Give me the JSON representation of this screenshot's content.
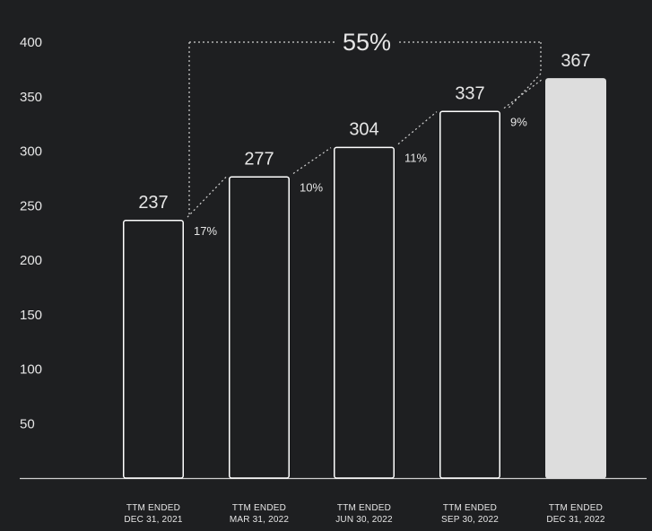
{
  "chart_data": {
    "type": "bar",
    "title": "",
    "xlabel": "",
    "ylabel": "",
    "ylim": [
      0,
      400
    ],
    "y_ticks": [
      50,
      100,
      150,
      200,
      250,
      300,
      350,
      400
    ],
    "grid": false,
    "categories": [
      [
        "TTM ENDED",
        "DEC 31, 2021"
      ],
      [
        "TTM ENDED",
        "MAR 31, 2022"
      ],
      [
        "TTM ENDED",
        "JUN 30, 2022"
      ],
      [
        "TTM ENDED",
        "SEP 30, 2022"
      ],
      [
        "TTM ENDED",
        "DEC 31, 2022"
      ]
    ],
    "values": [
      237,
      277,
      304,
      337,
      367
    ],
    "value_labels": [
      "237",
      "277",
      "304",
      "337",
      "367"
    ],
    "growth_labels": [
      "17%",
      "10%",
      "11%",
      "9%"
    ],
    "total_growth_label": "55%",
    "highlighted_index": 4
  },
  "colors": {
    "background": "#1e1f21",
    "text": "#e6e6e6",
    "bar_outline": "#ffffff",
    "bar_fill": "#1e1f21",
    "highlight_fill": "#dddddd",
    "axis": "#cfcfcf",
    "connector": "#d0d0d0"
  }
}
